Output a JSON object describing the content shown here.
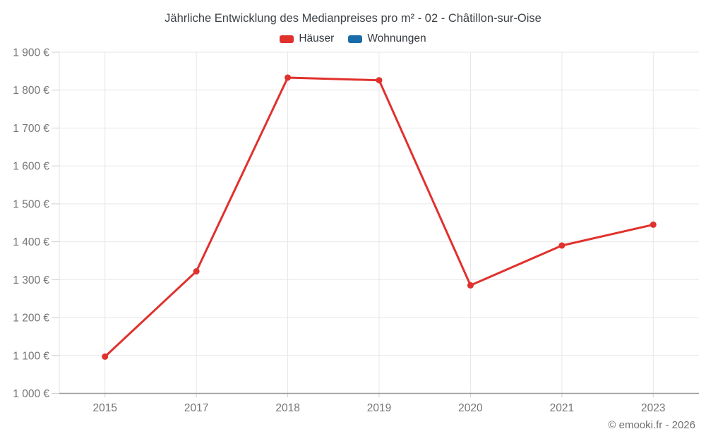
{
  "title": "Jährliche Entwicklung des Medianpreises pro m² - 02 - Châtillon-sur-Oise",
  "legend": {
    "items": [
      {
        "label": "Häuser",
        "color": "#e0312d"
      },
      {
        "label": "Wohnungen",
        "color": "#1a6ca8"
      }
    ]
  },
  "footer": "© emooki.fr - 2026",
  "colors": {
    "background": "#ffffff",
    "grid": "#e7e7e7",
    "axis_border": "#e2e2e2",
    "axis_line": "#9a9a9a",
    "tick": "#cfcfcf",
    "axis_text": "#757575",
    "title_text": "#3e4347"
  },
  "chart_data": {
    "type": "line",
    "title": "Jährliche Entwicklung des Medianpreises pro m² - 02 - Châtillon-sur-Oise",
    "categories": [
      "2015",
      "2017",
      "2018",
      "2019",
      "2020",
      "2021",
      "2023"
    ],
    "series": [
      {
        "name": "Häuser",
        "color": "#e0312d",
        "values": [
          1097,
          1322,
          1833,
          1826,
          1285,
          1390,
          1445
        ]
      },
      {
        "name": "Wohnungen",
        "color": "#1a6ca8",
        "values": []
      }
    ],
    "xlabel": "",
    "ylabel": "",
    "ylim": [
      1000,
      1900
    ],
    "y_tick_step": 100,
    "y_ticks": [
      {
        "value": 1000,
        "label": "1 000 €"
      },
      {
        "value": 1100,
        "label": "1 100 €"
      },
      {
        "value": 1200,
        "label": "1 200 €"
      },
      {
        "value": 1300,
        "label": "1 300 €"
      },
      {
        "value": 1400,
        "label": "1 400 €"
      },
      {
        "value": 1500,
        "label": "1 500 €"
      },
      {
        "value": 1600,
        "label": "1 600 €"
      },
      {
        "value": 1700,
        "label": "1 700 €"
      },
      {
        "value": 1800,
        "label": "1 800 €"
      },
      {
        "value": 1900,
        "label": "1 900 €"
      }
    ],
    "grid": true,
    "legend_position": "top"
  }
}
